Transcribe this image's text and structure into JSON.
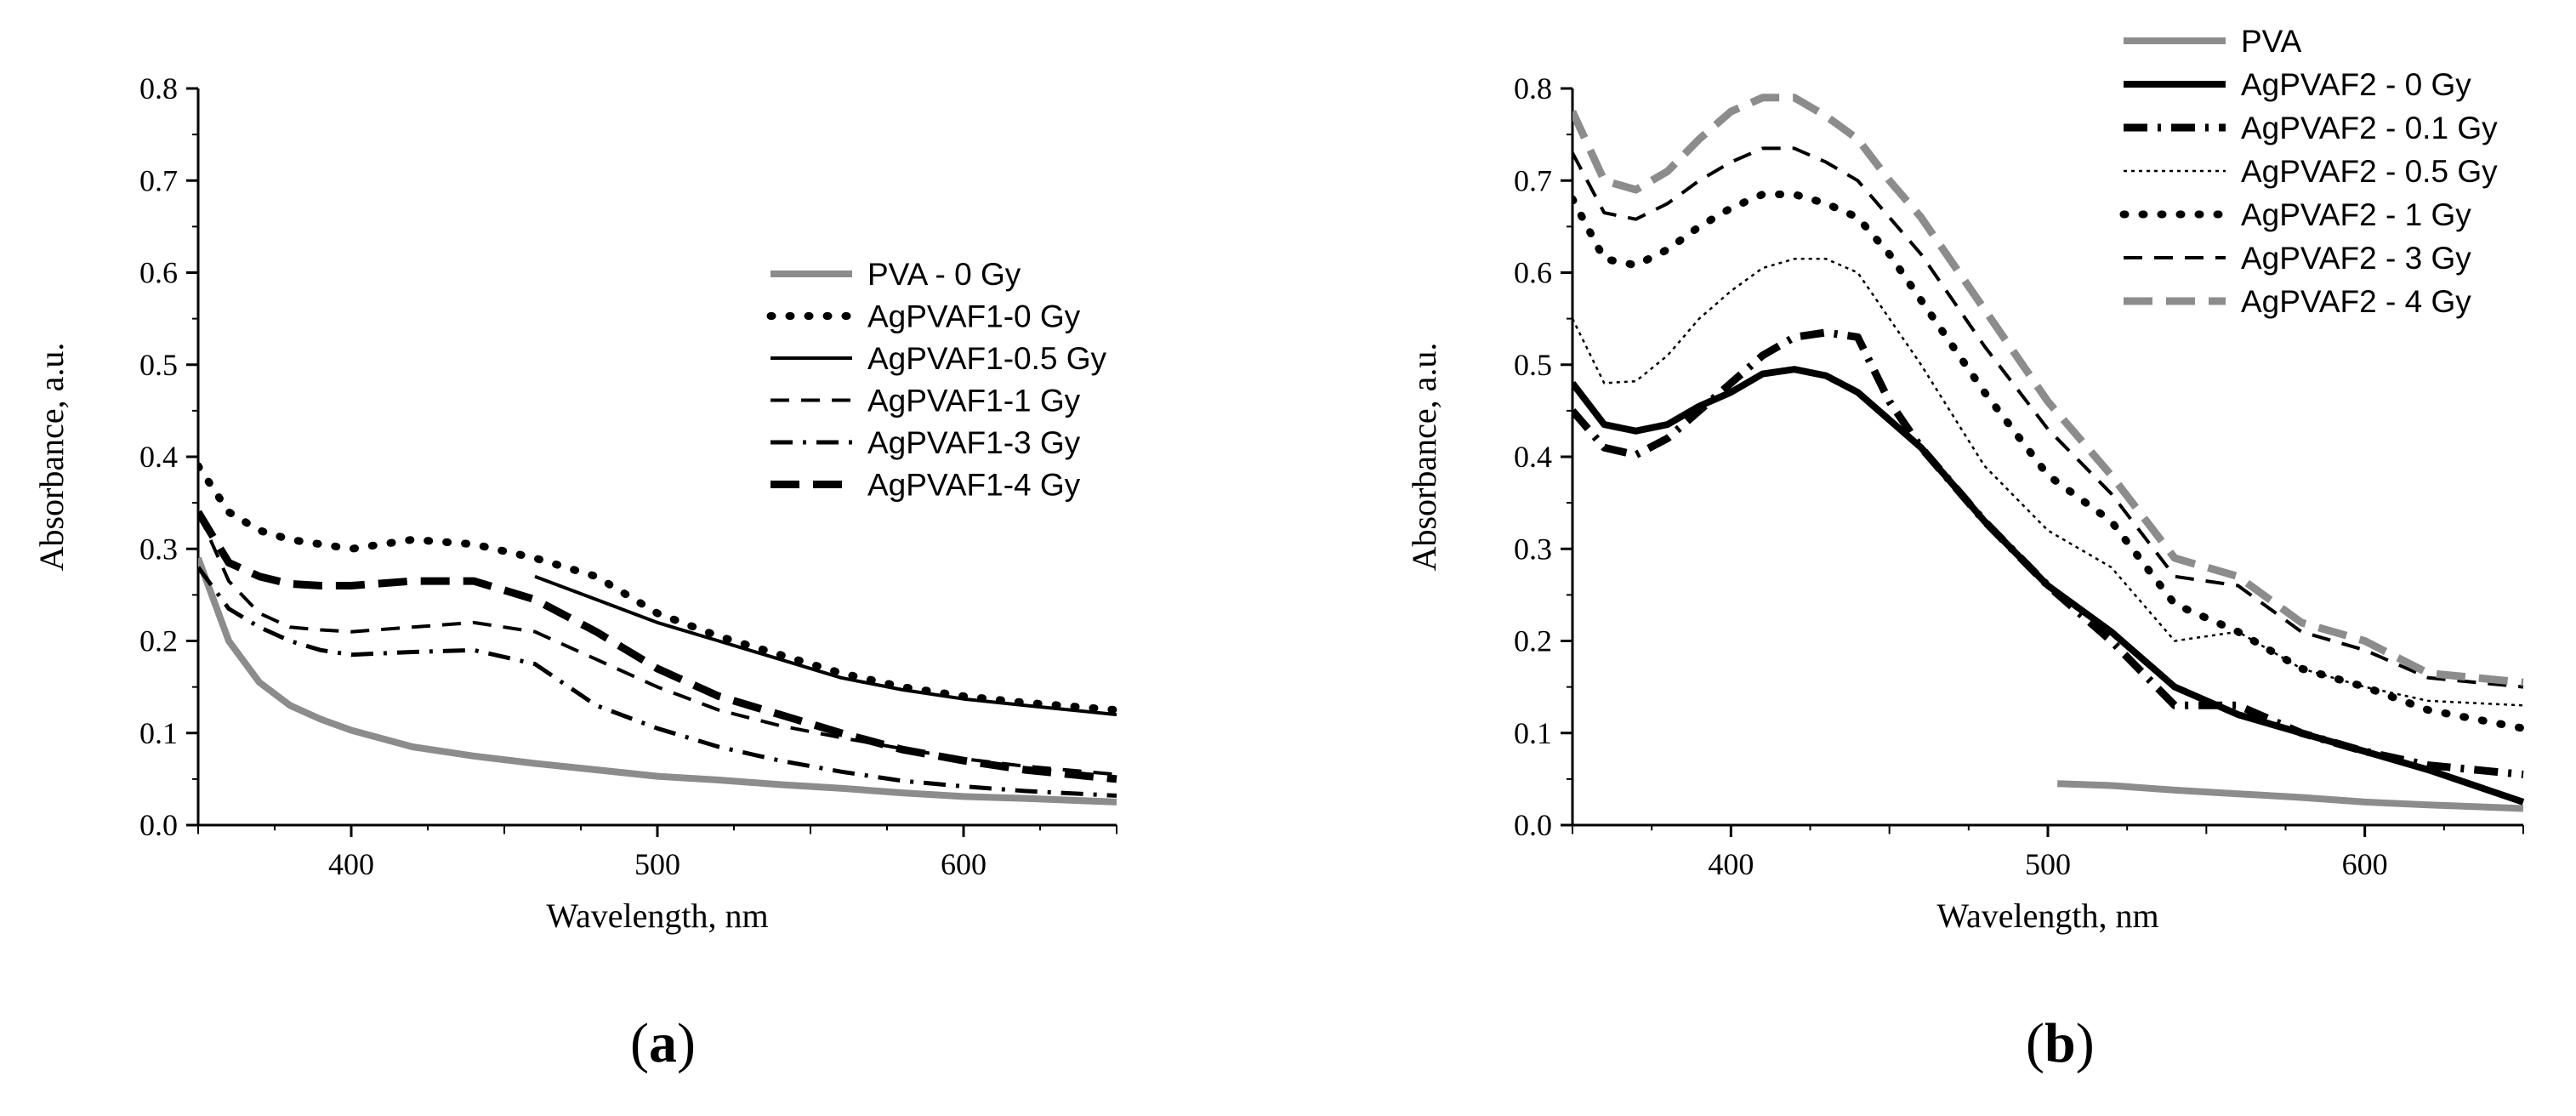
{
  "chart_data": [
    {
      "panel": "a",
      "type": "line",
      "xlabel": "Wavelength, nm",
      "ylabel": "Absorbance, a.u.",
      "xlim": [
        350,
        650
      ],
      "ylim": [
        0.0,
        0.8
      ],
      "xticks": [
        400,
        500,
        600
      ],
      "yticks": [
        0.0,
        0.1,
        0.2,
        0.3,
        0.4,
        0.5,
        0.6,
        0.7,
        0.8
      ],
      "ytick_labels": [
        "0.0",
        "0.1",
        "0.2",
        "0.3",
        "0.4",
        "0.5",
        "0.6",
        "0.7",
        "0.8"
      ],
      "xtick_labels": [
        "400",
        "500",
        "600"
      ],
      "legend_position": "center-right",
      "panel_label": {
        "open": "(",
        "letter": "a",
        "close": ")"
      },
      "series": [
        {
          "name": "PVA - 0 Gy",
          "color": "#8c8c8c",
          "style": "solid-thick",
          "x": [
            350,
            360,
            370,
            380,
            390,
            400,
            420,
            440,
            460,
            480,
            500,
            520,
            540,
            560,
            580,
            600,
            620,
            650
          ],
          "y": [
            0.29,
            0.2,
            0.155,
            0.13,
            0.115,
            0.103,
            0.085,
            0.075,
            0.067,
            0.06,
            0.053,
            0.049,
            0.044,
            0.04,
            0.035,
            0.031,
            0.029,
            0.025
          ]
        },
        {
          "name": "AgPVAF1-0 Gy",
          "color": "#000000",
          "style": "dotted-thick",
          "x": [
            350,
            360,
            370,
            380,
            390,
            400,
            420,
            440,
            460,
            480,
            500,
            520,
            540,
            560,
            580,
            600,
            620,
            650
          ],
          "y": [
            0.39,
            0.34,
            0.32,
            0.31,
            0.305,
            0.3,
            0.31,
            0.305,
            0.29,
            0.27,
            0.23,
            0.205,
            0.185,
            0.165,
            0.15,
            0.14,
            0.133,
            0.125
          ]
        },
        {
          "name": "AgPVAF1-0.5 Gy",
          "color": "#000000",
          "style": "solid",
          "x": [
            460,
            480,
            500,
            520,
            540,
            560,
            580,
            600,
            620,
            650
          ],
          "y": [
            0.27,
            0.245,
            0.22,
            0.2,
            0.18,
            0.16,
            0.147,
            0.137,
            0.13,
            0.12
          ]
        },
        {
          "name": "AgPVAF1-1 Gy",
          "color": "#000000",
          "style": "dashed",
          "x": [
            350,
            360,
            370,
            380,
            390,
            400,
            420,
            440,
            460,
            480,
            500,
            520,
            540,
            560,
            580,
            600,
            620,
            650
          ],
          "y": [
            0.34,
            0.265,
            0.23,
            0.215,
            0.212,
            0.21,
            0.215,
            0.22,
            0.21,
            0.18,
            0.15,
            0.125,
            0.108,
            0.095,
            0.083,
            0.072,
            0.064,
            0.055
          ]
        },
        {
          "name": "AgPVAF1-3 Gy",
          "color": "#000000",
          "style": "dash-dot",
          "x": [
            350,
            360,
            370,
            380,
            390,
            400,
            420,
            440,
            460,
            480,
            500,
            520,
            540,
            560,
            580,
            600,
            620,
            650
          ],
          "y": [
            0.28,
            0.235,
            0.215,
            0.2,
            0.19,
            0.185,
            0.188,
            0.19,
            0.175,
            0.13,
            0.105,
            0.085,
            0.07,
            0.058,
            0.048,
            0.042,
            0.037,
            0.032
          ]
        },
        {
          "name": "AgPVAF1-4 Gy",
          "color": "#000000",
          "style": "long-dash-thick",
          "x": [
            350,
            360,
            370,
            380,
            390,
            400,
            420,
            440,
            460,
            480,
            500,
            520,
            540,
            560,
            580,
            600,
            620,
            650
          ],
          "y": [
            0.34,
            0.285,
            0.27,
            0.262,
            0.26,
            0.26,
            0.265,
            0.265,
            0.245,
            0.21,
            0.17,
            0.14,
            0.12,
            0.1,
            0.082,
            0.07,
            0.06,
            0.05
          ]
        }
      ]
    },
    {
      "panel": "b",
      "type": "line",
      "xlabel": "Wavelength, nm",
      "ylabel": "Absorbance, a.u.",
      "xlim": [
        350,
        650
      ],
      "ylim": [
        0.0,
        0.8
      ],
      "xticks": [
        400,
        500,
        600
      ],
      "yticks": [
        0.0,
        0.1,
        0.2,
        0.3,
        0.4,
        0.5,
        0.6,
        0.7,
        0.8
      ],
      "ytick_labels": [
        "0.0",
        "0.1",
        "0.2",
        "0.3",
        "0.4",
        "0.5",
        "0.6",
        "0.7",
        "0.8"
      ],
      "xtick_labels": [
        "400",
        "500",
        "600"
      ],
      "legend_position": "top-right",
      "panel_label": {
        "open": "(",
        "letter": "b",
        "close": ")"
      },
      "series": [
        {
          "name": "PVA",
          "color": "#8c8c8c",
          "style": "solid-thick",
          "x": [
            503,
            520,
            540,
            560,
            580,
            600,
            620,
            650
          ],
          "y": [
            0.045,
            0.043,
            0.038,
            0.034,
            0.03,
            0.025,
            0.022,
            0.018
          ]
        },
        {
          "name": "AgPVAF2 - 0 Gy",
          "color": "#000000",
          "style": "solid-thick",
          "x": [
            350,
            360,
            370,
            380,
            390,
            400,
            410,
            420,
            430,
            440,
            450,
            460,
            480,
            500,
            520,
            540,
            560,
            580,
            600,
            620,
            650
          ],
          "y": [
            0.48,
            0.435,
            0.428,
            0.435,
            0.455,
            0.47,
            0.49,
            0.495,
            0.488,
            0.47,
            0.44,
            0.41,
            0.33,
            0.26,
            0.21,
            0.15,
            0.12,
            0.1,
            0.08,
            0.06,
            0.025
          ]
        },
        {
          "name": "AgPVAF2 - 0.1 Gy",
          "color": "#000000",
          "style": "dash-dot-thick",
          "x": [
            350,
            360,
            370,
            380,
            390,
            400,
            410,
            420,
            430,
            440,
            450,
            460,
            480,
            500,
            520,
            540,
            560,
            580,
            600,
            620,
            650
          ],
          "y": [
            0.45,
            0.41,
            0.402,
            0.42,
            0.45,
            0.48,
            0.51,
            0.53,
            0.535,
            0.53,
            0.46,
            0.41,
            0.33,
            0.26,
            0.2,
            0.13,
            0.13,
            0.1,
            0.08,
            0.065,
            0.055
          ]
        },
        {
          "name": "AgPVAF2 - 0.5 Gy",
          "color": "#000000",
          "style": "thin-dotted",
          "x": [
            350,
            360,
            370,
            380,
            390,
            400,
            410,
            420,
            430,
            440,
            450,
            460,
            480,
            500,
            520,
            540,
            560,
            580,
            600,
            620,
            650
          ],
          "y": [
            0.55,
            0.48,
            0.482,
            0.51,
            0.55,
            0.58,
            0.605,
            0.615,
            0.615,
            0.6,
            0.55,
            0.5,
            0.39,
            0.32,
            0.28,
            0.2,
            0.21,
            0.17,
            0.15,
            0.135,
            0.13
          ]
        },
        {
          "name": "AgPVAF2 - 1 Gy",
          "color": "#000000",
          "style": "dotted-thick",
          "x": [
            350,
            360,
            370,
            380,
            390,
            400,
            410,
            420,
            430,
            440,
            450,
            460,
            480,
            500,
            520,
            540,
            560,
            580,
            600,
            620,
            650
          ],
          "y": [
            0.68,
            0.615,
            0.608,
            0.625,
            0.65,
            0.67,
            0.685,
            0.685,
            0.675,
            0.66,
            0.62,
            0.57,
            0.47,
            0.38,
            0.33,
            0.24,
            0.21,
            0.17,
            0.15,
            0.125,
            0.105
          ]
        },
        {
          "name": "AgPVAF2 - 3 Gy",
          "color": "#000000",
          "style": "dashed",
          "x": [
            350,
            360,
            370,
            380,
            390,
            400,
            410,
            420,
            430,
            440,
            450,
            460,
            480,
            500,
            520,
            540,
            560,
            580,
            600,
            620,
            650
          ],
          "y": [
            0.73,
            0.665,
            0.658,
            0.675,
            0.7,
            0.72,
            0.735,
            0.735,
            0.72,
            0.7,
            0.66,
            0.62,
            0.52,
            0.43,
            0.36,
            0.27,
            0.26,
            0.21,
            0.19,
            0.16,
            0.15
          ]
        },
        {
          "name": "AgPVAF2 - 4 Gy",
          "color": "#8c8c8c",
          "style": "long-dash-thick",
          "x": [
            350,
            360,
            370,
            380,
            390,
            400,
            410,
            420,
            430,
            440,
            450,
            460,
            480,
            500,
            520,
            540,
            560,
            580,
            600,
            620,
            650
          ],
          "y": [
            0.775,
            0.7,
            0.69,
            0.71,
            0.745,
            0.775,
            0.79,
            0.79,
            0.77,
            0.745,
            0.7,
            0.66,
            0.56,
            0.46,
            0.38,
            0.29,
            0.27,
            0.22,
            0.2,
            0.165,
            0.155
          ]
        }
      ]
    }
  ]
}
